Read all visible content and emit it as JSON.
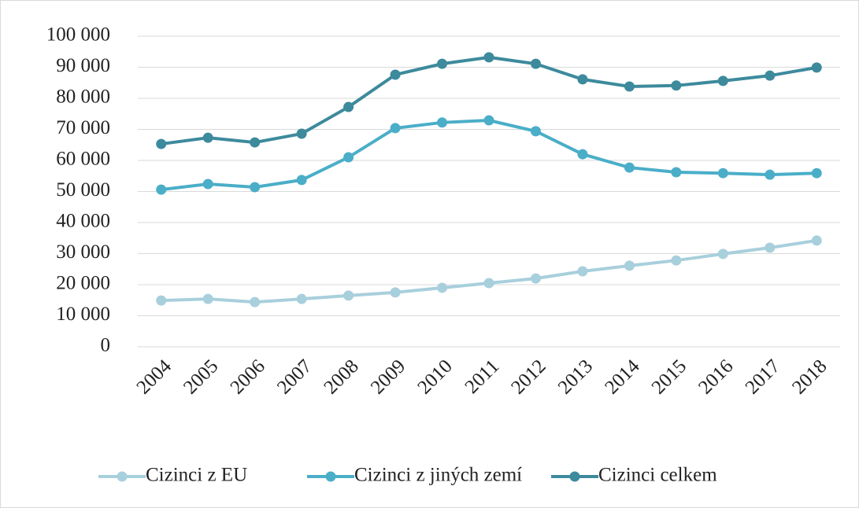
{
  "chart_data": {
    "type": "line",
    "categories": [
      "2004",
      "2005",
      "2006",
      "2007",
      "2008",
      "2009",
      "2010",
      "2011",
      "2012",
      "2013",
      "2014",
      "2015",
      "2016",
      "2017",
      "2018"
    ],
    "series": [
      {
        "name": "Cizinci z EU",
        "color": "#a8cfdc",
        "values": [
          14900,
          15400,
          14400,
          15400,
          16500,
          17500,
          19000,
          20500,
          22000,
          24300,
          26100,
          27800,
          29900,
          31900,
          34200
        ]
      },
      {
        "name": "Cizinci z jiných zemí",
        "color": "#4aaec8",
        "values": [
          50600,
          52400,
          51400,
          53700,
          61000,
          70400,
          72200,
          72900,
          69400,
          62000,
          57700,
          56200,
          55900,
          55400,
          55900
        ]
      },
      {
        "name": "Cizinci celkem",
        "color": "#3d8a9c",
        "values": [
          65300,
          67300,
          65800,
          68600,
          77200,
          87600,
          91100,
          93200,
          91100,
          86100,
          83800,
          84100,
          85600,
          87300,
          89900
        ]
      }
    ],
    "ylim": [
      0,
      100000
    ],
    "yticks": [
      0,
      {
        "value": 10000,
        "label": "10 000"
      },
      {
        "value": 20000,
        "label": "20 000"
      },
      {
        "value": 30000,
        "label": "30 000"
      },
      {
        "value": 40000,
        "label": "40 000"
      },
      {
        "value": 50000,
        "label": "50 000"
      },
      {
        "value": 60000,
        "label": "60 000"
      },
      {
        "value": 70000,
        "label": "70 000"
      },
      {
        "value": 80000,
        "label": "80 000"
      },
      {
        "value": 90000,
        "label": "90 000"
      },
      {
        "value": 100000,
        "label": "100 000"
      }
    ],
    "grid": true,
    "legend": "bottom"
  }
}
